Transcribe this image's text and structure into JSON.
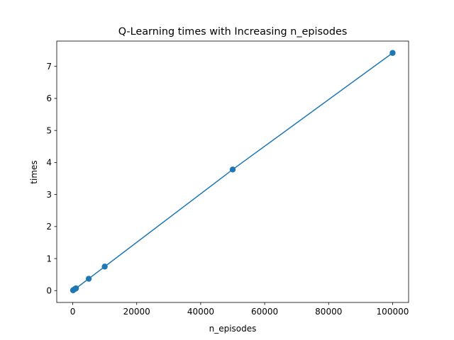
{
  "chart_data": {
    "type": "line",
    "title": "Q-Learning times with Increasing n_episodes",
    "xlabel": "n_episodes",
    "ylabel": "times",
    "xlim": [
      -5000,
      105000
    ],
    "ylim": [
      -0.37,
      7.79
    ],
    "xticks": [
      0,
      20000,
      40000,
      60000,
      80000,
      100000
    ],
    "xtick_labels": [
      "0",
      "20000",
      "40000",
      "60000",
      "80000",
      "100000"
    ],
    "yticks": [
      0,
      1,
      2,
      3,
      4,
      5,
      6,
      7
    ],
    "ytick_labels": [
      "0",
      "1",
      "2",
      "3",
      "4",
      "5",
      "6",
      "7"
    ],
    "grid": false,
    "markers": true,
    "series": [
      {
        "color": "#1f77b4",
        "x": [
          100,
          500,
          1000,
          5000,
          10000,
          50000,
          100000
        ],
        "y": [
          0.01,
          0.04,
          0.07,
          0.37,
          0.75,
          3.78,
          7.42
        ]
      }
    ]
  }
}
